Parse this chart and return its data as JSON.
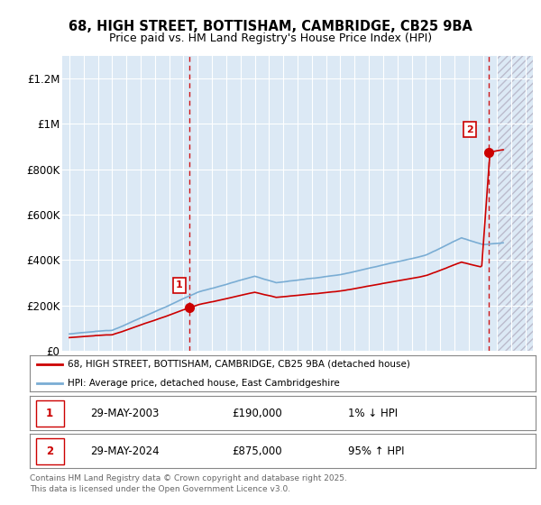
{
  "title_line1": "68, HIGH STREET, BOTTISHAM, CAMBRIDGE, CB25 9BA",
  "title_line2": "Price paid vs. HM Land Registry's House Price Index (HPI)",
  "background_color": "#dce9f5",
  "grid_color": "#ffffff",
  "ylim": [
    0,
    1300000
  ],
  "xlim_start": 1994.5,
  "xlim_end": 2027.5,
  "future_start": 2025.0,
  "transaction1_x": 2003.41,
  "transaction1_y": 190000,
  "transaction1_label": "1",
  "transaction2_x": 2024.41,
  "transaction2_y": 875000,
  "transaction2_label": "2",
  "legend_line1": "68, HIGH STREET, BOTTISHAM, CAMBRIDGE, CB25 9BA (detached house)",
  "legend_line2": "HPI: Average price, detached house, East Cambridgeshire",
  "footer_line1": "Contains HM Land Registry data © Crown copyright and database right 2025.",
  "footer_line2": "This data is licensed under the Open Government Licence v3.0.",
  "hpi_color": "#7aadd4",
  "price_color": "#cc0000",
  "dashed_color": "#cc0000",
  "yticks": [
    0,
    200000,
    400000,
    600000,
    800000,
    1000000,
    1200000
  ],
  "ytick_labels": [
    "£0",
    "£200K",
    "£400K",
    "£600K",
    "£800K",
    "£1M",
    "£1.2M"
  ],
  "xticks": [
    1995,
    1996,
    1997,
    1998,
    1999,
    2000,
    2001,
    2002,
    2003,
    2004,
    2005,
    2006,
    2007,
    2008,
    2009,
    2010,
    2011,
    2012,
    2013,
    2014,
    2015,
    2016,
    2017,
    2018,
    2019,
    2020,
    2021,
    2022,
    2023,
    2024,
    2025,
    2026,
    2027
  ]
}
